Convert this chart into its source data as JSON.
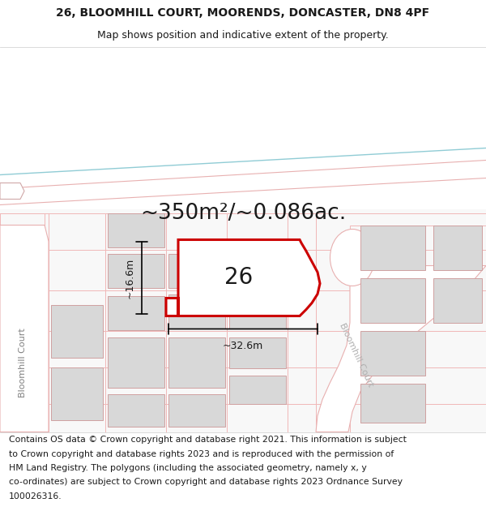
{
  "title_line1": "26, BLOOMHILL COURT, MOORENDS, DONCASTER, DN8 4PF",
  "title_line2": "Map shows position and indicative extent of the property.",
  "area_text": "~350m²/~0.086ac.",
  "number_label": "26",
  "dim_width": "~32.6m",
  "dim_height": "~16.6m",
  "road_label_left": "Bloomhill Court",
  "road_label_right": "Bloomhill Court",
  "footer_lines": [
    "Contains OS data © Crown copyright and database right 2021. This information is subject",
    "to Crown copyright and database rights 2023 and is reproduced with the permission of",
    "HM Land Registry. The polygons (including the associated geometry, namely x, y",
    "co-ordinates) are subject to Crown copyright and database rights 2023 Ordnance Survey",
    "100026316."
  ],
  "map_bg": "#f7f7f7",
  "map_upper_bg": "#ffffff",
  "grid_color": "#f0b8b8",
  "highlight_color": "#cc0000",
  "road_color": "#ffffff",
  "road_outline_color": "#e8b0b0",
  "building_color": "#d8d8d8",
  "building_outline": "#d0a0a0",
  "text_color": "#1a1a1a",
  "diag_line_color": "#aadde0",
  "title_fontsize": 10.0,
  "subtitle_fontsize": 9.0,
  "area_fontsize": 19,
  "label_fontsize": 20,
  "footer_fontsize": 7.8,
  "dim_fontsize": 9.0,
  "road_fontsize": 8.0
}
